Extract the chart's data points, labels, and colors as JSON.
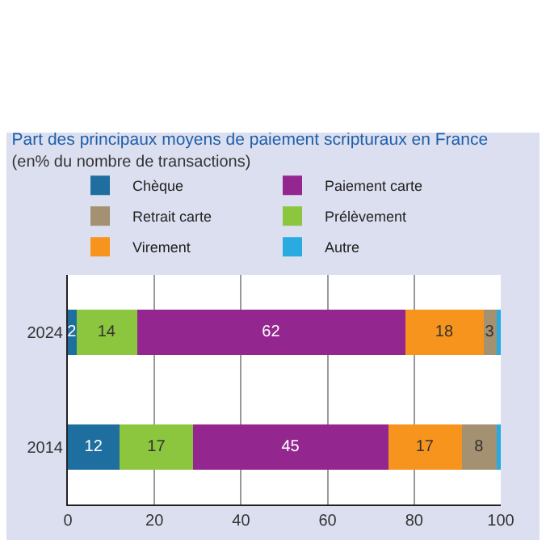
{
  "chart_data": {
    "type": "bar",
    "orientation": "horizontal",
    "stacked": true,
    "title": "Part des principaux moyens de paiement scripturaux en France",
    "subtitle": "(en% du nombre de transactions)",
    "categories": [
      "2024",
      "2014"
    ],
    "series": [
      {
        "name": "Chèque",
        "color": "#1f6ea0",
        "values": [
          2,
          12
        ],
        "value_labels": [
          "2",
          "12"
        ]
      },
      {
        "name": "Prélèvement",
        "color": "#8cc63f",
        "values": [
          14,
          17
        ],
        "value_labels": [
          "14",
          "17"
        ]
      },
      {
        "name": "Paiement carte",
        "color": "#93278f",
        "values": [
          62,
          45
        ],
        "value_labels": [
          "62",
          "45"
        ]
      },
      {
        "name": "Virement",
        "color": "#f7941d",
        "values": [
          18,
          17
        ],
        "value_labels": [
          "18",
          "17"
        ]
      },
      {
        "name": "Retrait carte",
        "color": "#a39171",
        "values": [
          3,
          8
        ],
        "value_labels": [
          "3",
          "8"
        ]
      },
      {
        "name": "Autre",
        "color": "#29abe2",
        "values": [
          1,
          1
        ],
        "value_labels": [
          null,
          null
        ]
      }
    ],
    "xlim": [
      0,
      100
    ],
    "xticks": [
      0,
      20,
      40,
      60,
      80,
      100
    ],
    "grid": "x",
    "legend": "top"
  }
}
